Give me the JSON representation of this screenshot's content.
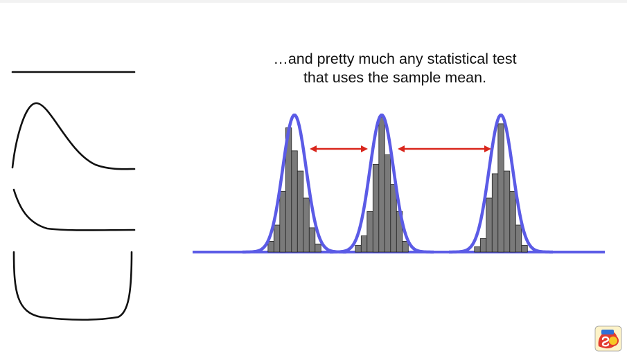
{
  "caption": {
    "line1": "…and pretty much any statistical test",
    "line2": "that uses the sample mean."
  },
  "distributions": {
    "shapes": [
      "uniform",
      "right-skewed",
      "exponential",
      "u-shaped"
    ],
    "line_color": "#111111"
  },
  "histograms": {
    "bar_fill": "#7a7a7a",
    "bar_stroke": "#222222",
    "curve_color": "#5b5be6",
    "arrow_color": "#d9261c",
    "groups": [
      {
        "name": "group-1",
        "bars": [
          0.08,
          0.2,
          0.45,
          0.92,
          0.75,
          0.6,
          0.4,
          0.18,
          0.06
        ]
      },
      {
        "name": "group-2",
        "bars": [
          0.05,
          0.12,
          0.3,
          0.65,
          1.0,
          0.72,
          0.5,
          0.3,
          0.08
        ]
      },
      {
        "name": "group-3",
        "bars": [
          0.04,
          0.1,
          0.4,
          0.58,
          0.95,
          0.6,
          0.45,
          0.2,
          0.05
        ]
      }
    ]
  },
  "logo": {
    "icon": "statquest-logo-icon",
    "colors": [
      "#e23b2e",
      "#2f6fd6",
      "#f7c824"
    ]
  }
}
